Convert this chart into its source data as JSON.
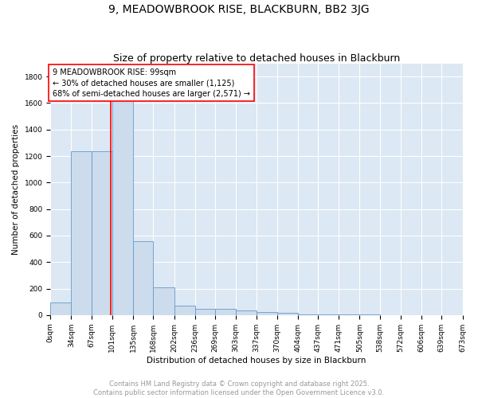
{
  "title": "9, MEADOWBROOK RISE, BLACKBURN, BB2 3JG",
  "subtitle": "Size of property relative to detached houses in Blackburn",
  "xlabel": "Distribution of detached houses by size in Blackburn",
  "ylabel": "Number of detached properties",
  "bar_color": "#ccdcec",
  "bar_edge_color": "#6699cc",
  "background_color": "#dce8f4",
  "grid_color": "white",
  "property_size": 99,
  "property_line_color": "red",
  "annotation_text": "9 MEADOWBROOK RISE: 99sqm\n← 30% of detached houses are smaller (1,125)\n68% of semi-detached houses are larger (2,571) →",
  "annotation_box_color": "white",
  "annotation_box_edge_color": "red",
  "bin_edges": [
    0,
    34,
    67,
    101,
    135,
    168,
    202,
    236,
    269,
    303,
    337,
    370,
    404,
    437,
    471,
    505,
    538,
    572,
    606,
    639,
    673
  ],
  "bin_counts": [
    95,
    1235,
    1235,
    1750,
    560,
    210,
    70,
    50,
    45,
    35,
    25,
    15,
    8,
    5,
    4,
    3,
    2,
    2,
    1,
    1
  ],
  "ylim": [
    0,
    1900
  ],
  "yticks": [
    0,
    200,
    400,
    600,
    800,
    1000,
    1200,
    1400,
    1600,
    1800
  ],
  "footer_line1": "Contains HM Land Registry data © Crown copyright and database right 2025.",
  "footer_line2": "Contains public sector information licensed under the Open Government Licence v3.0.",
  "footer_color": "#999999",
  "title_fontsize": 10,
  "subtitle_fontsize": 9,
  "axis_label_fontsize": 7.5,
  "tick_fontsize": 6.5,
  "annotation_fontsize": 7,
  "footer_fontsize": 6
}
